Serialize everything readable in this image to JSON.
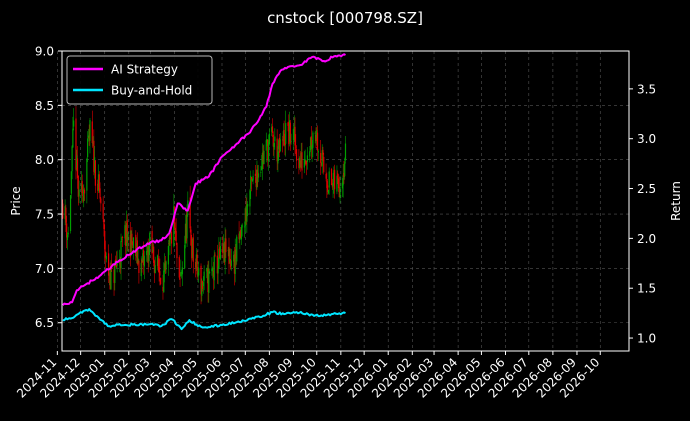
{
  "chart_data": {
    "type": "candlestick-line",
    "title": "cnstock [000798.SZ]",
    "ylabel_left": "Price",
    "ylabel_right": "Return",
    "ylim_left": [
      6.24,
      9.0
    ],
    "ylim_right": [
      0.87,
      3.88
    ],
    "xlim": [
      "2024-11-07",
      "2026-11-07"
    ],
    "left_ticks": [
      "6.5",
      "7.0",
      "7.5",
      "8.0",
      "8.5",
      "9.0"
    ],
    "right_ticks": [
      "1.0",
      "1.5",
      "2.0",
      "2.5",
      "3.0",
      "3.5"
    ],
    "x_ticks": [
      "2024-11",
      "2024-12",
      "2025-01",
      "2025-02",
      "2025-03",
      "2025-04",
      "2025-05",
      "2025-06",
      "2025-07",
      "2025-08",
      "2025-09",
      "2025-10",
      "2025-11",
      "2025-12",
      "2026-01",
      "2026-02",
      "2026-03",
      "2026-04",
      "2026-05",
      "2026-06",
      "2026-07",
      "2026-08",
      "2026-09",
      "2026-10"
    ],
    "grid": true,
    "legend_position": "top-left",
    "price_candles": {
      "start": "2024-11-08",
      "end": "2025-11-07",
      "up_color": "#00a000",
      "down_color": "#e00000",
      "close_anchors": [
        [
          "2024-11-08",
          7.6
        ],
        [
          "2024-11-15",
          7.3
        ],
        [
          "2024-11-22",
          8.3
        ],
        [
          "2024-11-29",
          7.6
        ],
        [
          "2024-12-06",
          7.8
        ],
        [
          "2024-12-13",
          8.25
        ],
        [
          "2024-12-20",
          7.9
        ],
        [
          "2024-12-27",
          7.6
        ],
        [
          "2025-01-03",
          7.05
        ],
        [
          "2025-01-10",
          6.9
        ],
        [
          "2025-01-20",
          7.1
        ],
        [
          "2025-01-27",
          7.3
        ],
        [
          "2025-02-07",
          7.2
        ],
        [
          "2025-02-17",
          7.0
        ],
        [
          "2025-02-28",
          7.2
        ],
        [
          "2025-03-10",
          7.0
        ],
        [
          "2025-03-20",
          6.9
        ],
        [
          "2025-03-31",
          7.45
        ],
        [
          "2025-04-07",
          6.8
        ],
        [
          "2025-04-18",
          7.5
        ],
        [
          "2025-04-25",
          7.1
        ],
        [
          "2025-05-05",
          6.85
        ],
        [
          "2025-05-15",
          6.9
        ],
        [
          "2025-05-26",
          7.05
        ],
        [
          "2025-06-06",
          7.15
        ],
        [
          "2025-06-16",
          7.05
        ],
        [
          "2025-06-27",
          7.35
        ],
        [
          "2025-07-07",
          7.7
        ],
        [
          "2025-07-16",
          7.9
        ],
        [
          "2025-07-25",
          8.05
        ],
        [
          "2025-08-04",
          8.2
        ],
        [
          "2025-08-13",
          8.05
        ],
        [
          "2025-08-22",
          8.25
        ],
        [
          "2025-09-01",
          8.2
        ],
        [
          "2025-09-10",
          7.95
        ],
        [
          "2025-09-19",
          8.1
        ],
        [
          "2025-09-29",
          8.3
        ],
        [
          "2025-10-10",
          7.9
        ],
        [
          "2025-10-20",
          7.75
        ],
        [
          "2025-10-31",
          7.8
        ],
        [
          "2025-11-07",
          8.05
        ]
      ]
    },
    "series": [
      {
        "name": "AI Strategy",
        "color": "#ff00ff",
        "axis": "right",
        "points": [
          [
            "2024-11-08",
            1.33
          ],
          [
            "2024-11-20",
            1.36
          ],
          [
            "2024-11-26",
            1.48
          ],
          [
            "2024-12-10",
            1.55
          ],
          [
            "2024-12-25",
            1.62
          ],
          [
            "2025-01-10",
            1.72
          ],
          [
            "2025-01-20",
            1.78
          ],
          [
            "2025-02-05",
            1.85
          ],
          [
            "2025-02-25",
            1.95
          ],
          [
            "2025-03-15",
            1.98
          ],
          [
            "2025-03-25",
            2.05
          ],
          [
            "2025-04-05",
            2.35
          ],
          [
            "2025-04-18",
            2.28
          ],
          [
            "2025-04-28",
            2.55
          ],
          [
            "2025-05-15",
            2.62
          ],
          [
            "2025-06-01",
            2.82
          ],
          [
            "2025-06-20",
            2.95
          ],
          [
            "2025-07-05",
            3.05
          ],
          [
            "2025-07-15",
            3.15
          ],
          [
            "2025-07-28",
            3.32
          ],
          [
            "2025-08-05",
            3.55
          ],
          [
            "2025-08-15",
            3.68
          ],
          [
            "2025-08-25",
            3.72
          ],
          [
            "2025-09-10",
            3.74
          ],
          [
            "2025-09-25",
            3.82
          ],
          [
            "2025-10-10",
            3.78
          ],
          [
            "2025-10-25",
            3.83
          ],
          [
            "2025-11-07",
            3.84
          ]
        ]
      },
      {
        "name": "Buy-and-Hold",
        "color": "#00e5ff",
        "axis": "right",
        "points": [
          [
            "2024-11-08",
            1.18
          ],
          [
            "2024-11-20",
            1.2
          ],
          [
            "2024-12-01",
            1.26
          ],
          [
            "2024-12-12",
            1.29
          ],
          [
            "2024-12-22",
            1.22
          ],
          [
            "2025-01-05",
            1.12
          ],
          [
            "2025-01-20",
            1.14
          ],
          [
            "2025-02-10",
            1.13
          ],
          [
            "2025-03-01",
            1.14
          ],
          [
            "2025-03-15",
            1.12
          ],
          [
            "2025-03-28",
            1.19
          ],
          [
            "2025-04-10",
            1.09
          ],
          [
            "2025-04-20",
            1.18
          ],
          [
            "2025-05-01",
            1.12
          ],
          [
            "2025-05-15",
            1.11
          ],
          [
            "2025-06-01",
            1.13
          ],
          [
            "2025-06-20",
            1.16
          ],
          [
            "2025-07-05",
            1.19
          ],
          [
            "2025-07-20",
            1.21
          ],
          [
            "2025-08-05",
            1.26
          ],
          [
            "2025-08-20",
            1.24
          ],
          [
            "2025-09-05",
            1.26
          ],
          [
            "2025-09-20",
            1.24
          ],
          [
            "2025-10-05",
            1.22
          ],
          [
            "2025-10-20",
            1.24
          ],
          [
            "2025-11-07",
            1.25
          ]
        ]
      }
    ]
  }
}
